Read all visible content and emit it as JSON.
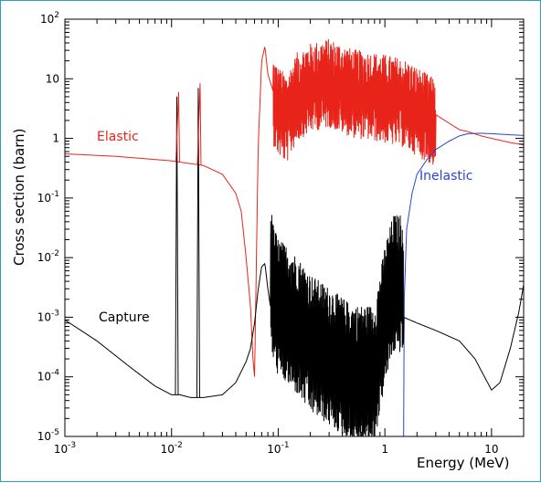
{
  "chart_data": {
    "type": "line",
    "xscale": "log",
    "yscale": "log",
    "xlim": [
      0.001,
      20
    ],
    "ylim": [
      1e-05,
      100
    ],
    "xlabel": "Energy (MeV)",
    "ylabel": "Cross section (barn)",
    "x_tick_labels": [
      {
        "value": 0.001,
        "base": "10",
        "exp": "-3"
      },
      {
        "value": 0.01,
        "base": "10",
        "exp": "-2"
      },
      {
        "value": 0.1,
        "base": "10",
        "exp": "-1"
      },
      {
        "value": 1,
        "base": "1",
        "exp": ""
      },
      {
        "value": 10,
        "base": "10",
        "exp": ""
      }
    ],
    "y_tick_labels": [
      {
        "value": 1e-05,
        "base": "10",
        "exp": "-5"
      },
      {
        "value": 0.0001,
        "base": "10",
        "exp": "-4"
      },
      {
        "value": 0.001,
        "base": "10",
        "exp": "-3"
      },
      {
        "value": 0.01,
        "base": "10",
        "exp": "-2"
      },
      {
        "value": 0.1,
        "base": "10",
        "exp": "-1"
      },
      {
        "value": 1,
        "base": "1",
        "exp": ""
      },
      {
        "value": 10,
        "base": "10",
        "exp": ""
      },
      {
        "value": 100,
        "base": "10",
        "exp": "2"
      }
    ],
    "series": [
      {
        "name": "Elastic",
        "color": "#e8241a",
        "x": [
          0.001,
          0.003,
          0.01,
          0.02,
          0.03,
          0.04,
          0.045,
          0.05,
          0.055,
          0.058,
          0.06,
          0.065,
          0.07,
          0.075,
          0.08,
          0.09,
          0.1,
          0.12,
          0.15,
          0.2,
          0.3,
          0.5,
          0.8,
          1.0,
          1.5,
          2,
          3,
          4,
          5,
          6,
          8,
          10,
          15,
          20
        ],
        "y": [
          0.55,
          0.5,
          0.42,
          0.35,
          0.25,
          0.12,
          0.06,
          0.01,
          0.0015,
          0.0002,
          0.0001,
          0.8,
          20,
          35,
          12,
          6,
          4,
          3,
          7,
          10,
          12,
          8,
          7,
          6.5,
          5.5,
          4,
          2.5,
          1.8,
          1.4,
          1.3,
          1.1,
          1.0,
          0.85,
          0.78
        ]
      },
      {
        "name": "Inelastic",
        "color": "#2a45d8",
        "x": [
          1.5,
          1.52,
          1.6,
          1.8,
          2.0,
          2.5,
          3,
          4,
          5,
          6,
          8,
          10,
          15,
          20
        ],
        "y": [
          1e-05,
          0.002,
          0.03,
          0.12,
          0.25,
          0.45,
          0.65,
          0.9,
          1.1,
          1.2,
          1.22,
          1.2,
          1.15,
          1.12
        ]
      },
      {
        "name": "Capture",
        "color": "#000000",
        "x": [
          0.001,
          0.002,
          0.004,
          0.007,
          0.01,
          0.011,
          0.012,
          0.015,
          0.0175,
          0.02,
          0.03,
          0.04,
          0.05,
          0.055,
          0.06,
          0.065,
          0.07,
          0.075,
          0.08,
          0.09,
          0.1,
          0.12,
          0.15,
          0.2,
          0.3,
          0.5,
          0.8,
          1.0,
          1.2,
          1.5,
          2,
          3,
          5,
          7,
          10,
          12,
          15,
          18,
          20
        ],
        "y": [
          0.0009,
          0.0004,
          0.00015,
          7e-05,
          5e-05,
          5e-05,
          5e-05,
          4.5e-05,
          4.5e-05,
          4.5e-05,
          5e-05,
          8e-05,
          0.00018,
          0.0003,
          0.0008,
          0.003,
          0.007,
          0.008,
          0.003,
          0.0007,
          0.0004,
          0.0003,
          0.0002,
          0.0001,
          6e-05,
          3e-05,
          3e-05,
          0.0003,
          0.001,
          0.001,
          0.0008,
          0.0006,
          0.0004,
          0.0002,
          6e-05,
          8e-05,
          0.0003,
          0.0012,
          0.0035
        ]
      }
    ],
    "resonance_peaks": {
      "Capture": [
        {
          "x": 0.0112,
          "y": 5
        },
        {
          "x": 0.0178,
          "y": 7
        }
      ]
    },
    "legend": "inline labels"
  }
}
